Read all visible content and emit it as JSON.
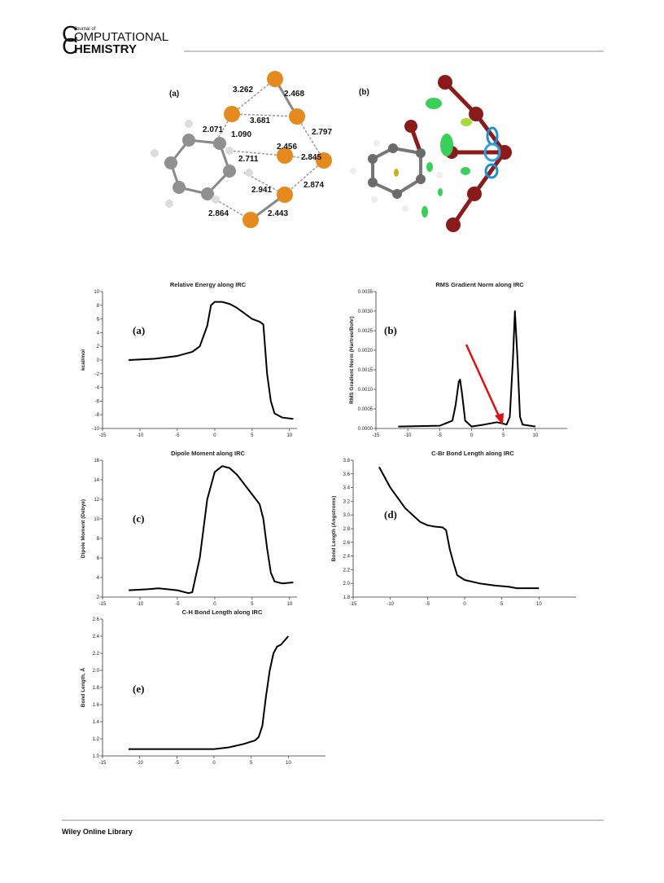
{
  "header": {
    "journal_small": "Journal of",
    "line1": "OMPUTATIONAL",
    "line2": "HEMISTRY",
    "initial": "C"
  },
  "figure1": {
    "panels": [
      "(a)",
      "(b)"
    ],
    "distances": [
      "3.262",
      "2.468",
      "3.681",
      "2.071",
      "1.090",
      "2.797",
      "2.456",
      "2.711",
      "2.845",
      "2.941",
      "2.874",
      "2.864",
      "2.443"
    ]
  },
  "chart_data": [
    {
      "type": "line",
      "title": "Relative Energy along IRC",
      "y_label": "kcal/mol",
      "annotation": "(a)",
      "color": "#000000",
      "x": [
        -11.5,
        -8,
        -5,
        -3,
        -2,
        -1,
        -0.5,
        0,
        1,
        2,
        3,
        4,
        5,
        6,
        6.5,
        7,
        7.5,
        8,
        9,
        10.5
      ],
      "values": [
        0,
        0.2,
        0.6,
        1.2,
        2,
        5,
        8,
        8.5,
        8.5,
        8.2,
        7.6,
        6.8,
        6,
        5.6,
        5.2,
        -2,
        -6,
        -7.8,
        -8.4,
        -8.6
      ],
      "xlim": [
        -15,
        11
      ],
      "xticks": [
        -15,
        -10,
        -5,
        0,
        5,
        10
      ],
      "ylim": [
        -10,
        10
      ],
      "yticks": [
        -10,
        -8,
        -6,
        -4,
        -2,
        0,
        2,
        4,
        6,
        8,
        10
      ]
    },
    {
      "type": "line",
      "title": "RMS Gradient Norm along IRC",
      "y_label": "RMS Gradient Norm (Hartree/Bohr)",
      "annotation": "(b)",
      "color": "#000000",
      "x": [
        -11.5,
        -5,
        -3,
        -2.5,
        -2,
        -1.8,
        -1.5,
        -1,
        0,
        2,
        4,
        5.5,
        6,
        6.5,
        6.8,
        7.2,
        7.6,
        8,
        10
      ],
      "values": [
        5e-05,
        7e-05,
        0.0002,
        0.0006,
        0.0012,
        0.00125,
        0.0009,
        0.0002,
        5e-05,
        0.0001,
        0.00016,
        0.0001,
        0.0003,
        0.0018,
        0.003,
        0.0018,
        0.0003,
        0.0001,
        5e-05
      ],
      "xlim": [
        -15,
        15
      ],
      "xticks": [
        -15,
        -10,
        -5,
        0,
        5,
        10
      ],
      "ylim": [
        0,
        0.0035
      ],
      "yticks": [
        {
          "value": 0,
          "label": "0.0000"
        },
        {
          "value": 0.0005,
          "label": "0.0005"
        },
        {
          "value": 0.001,
          "label": "0.0010"
        },
        {
          "value": 0.0015,
          "label": "0.0015"
        },
        {
          "value": 0.002,
          "label": "0.0020"
        },
        {
          "value": 0.0025,
          "label": "0.0025"
        },
        {
          "value": 0.003,
          "label": "0.0030"
        },
        {
          "value": 0.0035,
          "label": "0.0035"
        }
      ]
    },
    {
      "type": "line",
      "title": "Dipole Moment along IRC",
      "y_label": "Dipole Moment (Debye)",
      "annotation": "(c)",
      "color": "#000000",
      "x": [
        -11.5,
        -9,
        -7.5,
        -5,
        -3.5,
        -3,
        -2,
        -1,
        0,
        1,
        2,
        3,
        4,
        5,
        6,
        6.5,
        7,
        7.5,
        8,
        9,
        10.5
      ],
      "values": [
        2.7,
        2.8,
        2.9,
        2.7,
        2.4,
        2.5,
        6,
        12,
        14.8,
        15.4,
        15.2,
        14.5,
        13.5,
        12.5,
        11.5,
        10,
        7,
        4.5,
        3.6,
        3.4,
        3.5
      ],
      "xlim": [
        -15,
        11
      ],
      "xticks": [
        -15,
        -10,
        -5,
        0,
        5,
        10
      ],
      "ylim": [
        2,
        16
      ],
      "yticks": [
        2,
        4,
        6,
        8,
        10,
        12,
        14,
        16
      ]
    },
    {
      "type": "line",
      "title": "C-Br Bond Length along IRC",
      "y_label": "Bond Length (Angstroms)",
      "annotation": "(d)",
      "color": "#000000",
      "x": [
        -11.5,
        -10,
        -8,
        -6,
        -5,
        -4,
        -3,
        -2.5,
        -2,
        -1.5,
        -1,
        0,
        2,
        4,
        6,
        7,
        10
      ],
      "values": [
        3.7,
        3.4,
        3.1,
        2.9,
        2.85,
        2.83,
        2.82,
        2.78,
        2.5,
        2.3,
        2.12,
        2.05,
        2.0,
        1.97,
        1.95,
        1.93,
        1.93
      ],
      "xlim": [
        -15,
        15
      ],
      "xticks": [
        -15,
        -10,
        -5,
        0,
        5,
        10
      ],
      "ylim": [
        1.8,
        3.8
      ],
      "yticks": [
        1.8,
        {
          "value": 2,
          "label": "2.0"
        },
        2.2,
        2.4,
        2.6,
        2.8,
        {
          "value": 3,
          "label": "3.0"
        },
        3.2,
        3.4,
        3.6,
        3.8
      ]
    },
    {
      "type": "line",
      "title": "C-H Bond Length along IRC",
      "y_label": "Bond Length, Å",
      "annotation": "(e)",
      "color": "#000000",
      "x": [
        -11.5,
        -5,
        0,
        2,
        4,
        5.5,
        6,
        6.5,
        7,
        7.5,
        8,
        8.5,
        9,
        9.5,
        10
      ],
      "values": [
        1.08,
        1.08,
        1.08,
        1.1,
        1.14,
        1.18,
        1.22,
        1.35,
        1.7,
        2.0,
        2.2,
        2.28,
        2.3,
        2.35,
        2.4
      ],
      "xlim": [
        -15,
        15
      ],
      "xticks": [
        -15,
        -10,
        -5,
        0,
        5,
        10
      ],
      "ylim": [
        1,
        2.6
      ],
      "yticks": [
        {
          "value": 1,
          "label": "1.0"
        },
        1.2,
        1.4,
        1.6,
        1.8,
        {
          "value": 2,
          "label": "2.0"
        },
        2.2,
        2.4,
        2.6
      ]
    }
  ],
  "footer": {
    "text": "Wiley Online Library"
  }
}
